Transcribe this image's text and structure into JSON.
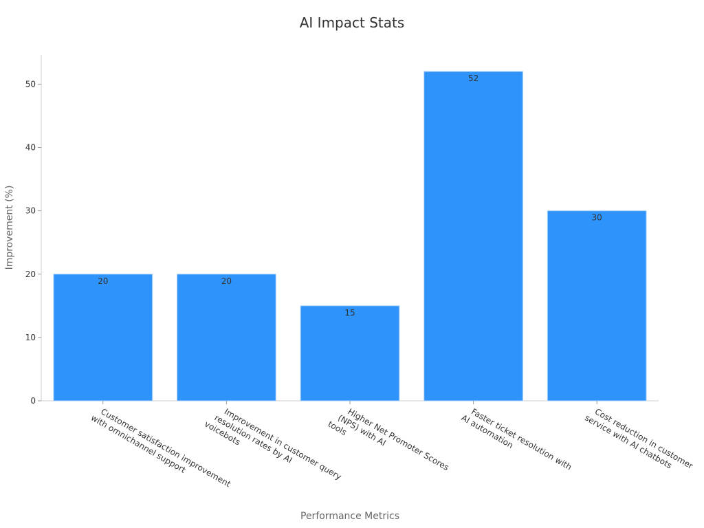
{
  "chart_data": {
    "type": "bar",
    "title": "AI Impact Stats",
    "xlabel": "Performance Metrics",
    "ylabel": "Improvement (%)",
    "categories": [
      [
        "Customer satisfaction improvement",
        "with omnichannel support"
      ],
      [
        "Improvement in customer query",
        "resolution rates by AI",
        "voicebots"
      ],
      [
        "Higher Net Promoter Scores",
        "(NPS) with AI",
        "tools"
      ],
      [
        "Faster ticket resolution with",
        "AI automation"
      ],
      [
        "Cost reduction in customer",
        "service with AI chatbots"
      ]
    ],
    "values": [
      20,
      20,
      15,
      52,
      30
    ],
    "ylim": [
      0,
      54.6
    ],
    "yticks": [
      0,
      10,
      20,
      30,
      40,
      50
    ],
    "grid": false,
    "bar_color": "#2e93fa"
  }
}
